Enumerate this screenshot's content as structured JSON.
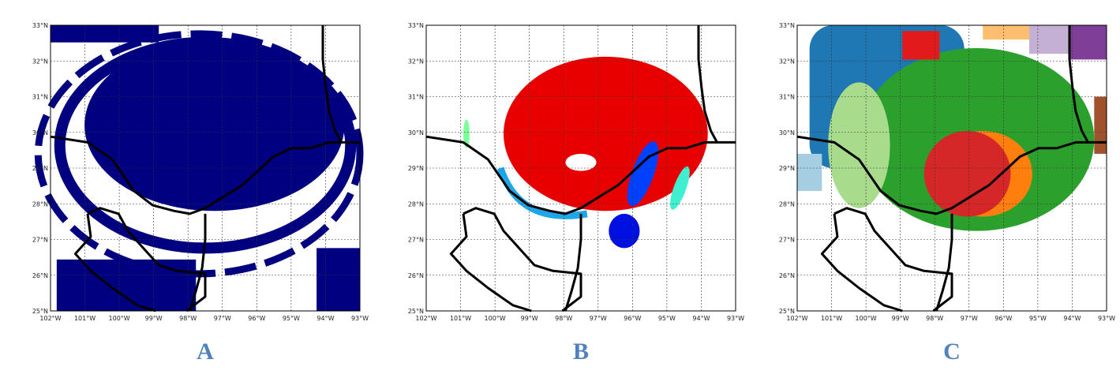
{
  "panels": [
    {
      "letter": "A",
      "lon_labels": [
        "102°W",
        "101°W",
        "100°W",
        "99°W",
        "98°W",
        "97°W",
        "96°W",
        "95°W",
        "94°W",
        "93°W"
      ],
      "lat_labels": [
        "33°N",
        "32°N",
        "31°N",
        "30°N",
        "29°N",
        "28°N",
        "27°N",
        "26°N",
        "25°N"
      ]
    },
    {
      "letter": "B",
      "lon_labels": [
        "102°W",
        "101°W",
        "100°W",
        "99°W",
        "98°W",
        "97°W",
        "96°W",
        "95°W",
        "94°W",
        "93°W"
      ],
      "lat_labels": [
        "33°N",
        "32°N",
        "31°N",
        "30°N",
        "29°N",
        "28°N",
        "27°N",
        "26°N",
        "25°N"
      ]
    },
    {
      "letter": "C",
      "lon_labels": [
        "102°W",
        "101°W",
        "100°W",
        "99°W",
        "98°W",
        "97°W",
        "96°W",
        "95°W",
        "94°W",
        "93°W"
      ],
      "lat_labels": [
        "33°N",
        "32°N",
        "31°N",
        "30°N",
        "29°N",
        "28°N",
        "27°N",
        "26°N",
        "25°N"
      ]
    }
  ]
}
